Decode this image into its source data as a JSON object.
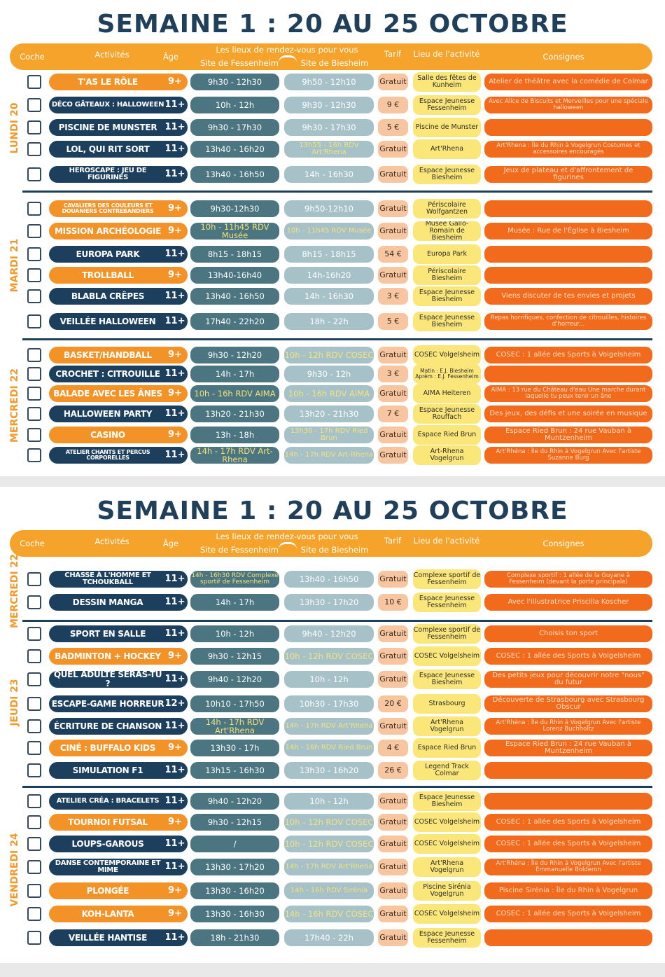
{
  "pages": [
    {
      "title": "SEMAINE 1 : 20 AU 25 OCTOBRE",
      "header": {
        "check": "Coche",
        "activities": "Activités",
        "age": "Âge",
        "meeting": "Les lieux de rendez-vous pour vous",
        "fessenheim": "Site de Fessenheim",
        "biesheim": "Site de Biesheim",
        "price": "Tarif",
        "place": "Lieu de l'activité",
        "notes": "Consignes"
      },
      "days": [
        {
          "label": "LUNDI 20",
          "rows": [
            {
              "activity": "T'AS LE RÔLE",
              "age": "9+",
              "fessenheim": "9h30 - 12h30",
              "biesheim": "9h50 - 12h10",
              "price": "Gratuit",
              "place": "Salle des fêtes de Kunheim",
              "notes": "Atelier de théâtre avec la comédie de Colmar",
              "color": "#f39226"
            },
            {
              "activity": "DÉCO GÂTEAUX : HALLOWEEN",
              "age": "11+",
              "fessenheim": "10h - 12h",
              "biesheim": "9h30 - 12h30",
              "price": "9 €",
              "place": "Espace Jeunesse Fessenheim",
              "notes": "Avec Alice de Biscuits et Merveilles pour une spéciale halloween",
              "color": "#1d3f5e"
            },
            {
              "activity": "PISCINE DE MUNSTER",
              "age": "11+",
              "fessenheim": "9h30 - 17h30",
              "biesheim": "9h30 - 17h30",
              "price": "5 €",
              "place": "Piscine de Munster",
              "color": "#1d3f5e"
            },
            {
              "activity": "LOL, QUI RIT SORT",
              "age": "11+",
              "fessenheim": "13h40 - 16h20",
              "biesheim": "13h55 - 16h RDV Art'Rhena",
              "price": "Gratuit",
              "place": "Art'Rhena",
              "notes": "Art'Rhena : Île du Rhin à Vogelgrun Costumes et accessoires encouragés",
              "color": "#1d3f5e"
            },
            {
              "activity": "HEROSCAPE : JEU DE FIGURINES",
              "age": "11+",
              "fessenheim": "13h40 - 16h50",
              "biesheim": "14h - 16h30",
              "price": "Gratuit",
              "place": "Espace Jeunesse Biesheim",
              "notes": "Jeux de plateau et d'affrontement de figurines",
              "color": "#1d3f5e"
            }
          ]
        },
        {
          "label": "MARDI 21",
          "rows": [
            {
              "activity": "CAVALIERS DES COULEURS ET DOUANIERS CONTREBANDIERS",
              "age": "9+",
              "fessenheim": "9h30-12h30",
              "biesheim": "9h50-12h10",
              "price": "Gratuit",
              "place": "Périscolaire Wolfgantzen",
              "color": "#f39226"
            },
            {
              "activity": "MISSION ARCHÉOLOGIE",
              "age": "9+",
              "fessenheim": "10h - 11h45 RDV Musée",
              "biesheim": "10h - 11h45 RDV Musée",
              "price": "Gratuit",
              "place": "Musée Gallo-Romain de Biesheim",
              "notes": "Musée : Rue de l'Église à Biesheim",
              "color": "#f39226"
            },
            {
              "activity": "EUROPA PARK",
              "age": "11+",
              "fessenheim": "8h15 - 18h15",
              "biesheim": "8h15 - 18h15",
              "price": "54 €",
              "place": "Europa Park",
              "color": "#1d3f5e"
            },
            {
              "activity": "TROLLBALL",
              "age": "9+",
              "fessenheim": "13h40-16h40",
              "biesheim": "14h-16h20",
              "price": "Gratuit",
              "place": "Périscolaire Biesheim",
              "color": "#f39226"
            },
            {
              "activity": "BLABLA CRÊPES",
              "age": "11+",
              "fessenheim": "13h40 - 16h50",
              "biesheim": "14h - 16h30",
              "price": "3 €",
              "place": "Espace Jeunesse Biesheim",
              "notes": "Viens discuter de tes envies et projets",
              "color": "#1d3f5e"
            },
            {
              "activity": "VEILLÉE HALLOWEEN",
              "age": "11+",
              "fessenheim": "17h40 - 22h20",
              "biesheim": "18h - 22h",
              "price": "5 €",
              "place": "Espace Jeunesse Biesheim",
              "notes": "Repas horrifiques, confection de citrouilles, histoires d'horreur...",
              "color": "#1d3f5e"
            }
          ]
        },
        {
          "label": "MERCREDI 22",
          "rows": [
            {
              "activity": "BASKET/HANDBALL",
              "age": "9+",
              "fessenheim": "9h30 - 12h20",
              "biesheim": "10h - 12h RDV COSEC",
              "price": "Gratuit",
              "place": "COSEC Volgelsheim",
              "notes": "COSEC : 1 allée des Sports à Volgelsheim",
              "color": "#f39226"
            },
            {
              "activity": "CROCHET : CITROUILLE",
              "age": "11+",
              "fessenheim": "14h - 17h",
              "biesheim": "9h30 - 12h",
              "price": "3 €",
              "place": "Matin : E.J. Biesheim Aprèm : E.J. Fessenheim",
              "color": "#1d3f5e"
            },
            {
              "activity": "BALADE AVEC LES ÂNES",
              "age": "9+",
              "fessenheim": "10h - 16h RDV AIMA",
              "biesheim": "10h - 16h RDV AIMA",
              "price": "Gratuit",
              "place": "AIMA Heiteren",
              "notes": "AIMA : 13 rue du Château d'eau Une marche durant laquelle tu peux tenir un âne",
              "color": "#f39226"
            },
            {
              "activity": "HALLOWEEN PARTY",
              "age": "11+",
              "fessenheim": "13h20 - 21h30",
              "biesheim": "13h20 - 21h30",
              "price": "7 €",
              "place": "Espace Jeunesse Rouffach",
              "notes": "Des jeux, des défis et une soirée en musique",
              "color": "#1d3f5e"
            },
            {
              "activity": "CASINO",
              "age": "9+",
              "fessenheim": "13h - 18h",
              "biesheim": "13h30 - 17h RDV Ried Brun",
              "price": "Gratuit",
              "place": "Espace Ried Brun",
              "notes": "Espace Ried Brun : 24 rue Vauban à Muntzenheim",
              "color": "#f39226"
            },
            {
              "activity": "ATELIER CHANTS ET PERCUS CORPORELLES",
              "age": "11+",
              "fessenheim": "14h - 17h RDV Art-Rhena",
              "biesheim": "14h - 17h RDV Art-Rhena",
              "price": "Gratuit",
              "place": "Art-Rhena Vogelgrun",
              "notes": "Art'Rhéna : Île du Rhin à Vogelgrun Avec l'artiste Suzanne Burg",
              "color": "#1d3f5e"
            }
          ]
        }
      ]
    },
    {
      "title": "SEMAINE 1 : 20 AU 25 OCTOBRE",
      "header": {
        "check": "Coche",
        "activities": "Activités",
        "age": "Âge",
        "meeting": "Les lieux de rendez-vous pour vous",
        "fessenheim": "Site de Fessenheim",
        "biesheim": "Site de Biesheim",
        "price": "Tarif",
        "place": "Lieu de l'activité",
        "notes": "Consignes"
      },
      "days": [
        {
          "label": "MERCREDI 22",
          "rows": [
            {
              "activity": "CHASSE À L'HOMME ET TCHOUKBALL",
              "age": "11+",
              "fessenheim": "14h - 16h30 RDV Complexe sportif de Fessenheim",
              "biesheim": "13h40 - 16h50",
              "price": "Gratuit",
              "place": "Complexe sportif de Fessenheim",
              "notes": "Complexe sportif : 1 allée de la Guyane à Fessenheim (devant la porte principale)",
              "color": "#1d3f5e"
            },
            {
              "activity": "DESSIN MANGA",
              "age": "11+",
              "fessenheim": "14h - 17h",
              "biesheim": "13h30 - 17h20",
              "price": "10 €",
              "place": "Espace Jeunesse Fessenheim",
              "notes": "Avec l'illustratrice Priscilla Koscher",
              "color": "#1d3f5e"
            }
          ]
        },
        {
          "label": "JEUDI 23",
          "rows": [
            {
              "activity": "SPORT EN SALLE",
              "age": "11+",
              "fessenheim": "10h - 12h",
              "biesheim": "9h40 - 12h20",
              "price": "Gratuit",
              "place": "Complexe sportif de Fessenheim",
              "notes": "Choisis ton sport",
              "color": "#1d3f5e"
            },
            {
              "activity": "BADMINTON + HOCKEY",
              "age": "9+",
              "fessenheim": "9h30 - 12h15",
              "biesheim": "10h - 12h RDV COSEC",
              "price": "Gratuit",
              "place": "COSEC Volgelsheim",
              "notes": "COSEC : 1 allée des Sports à Volgelsheim",
              "color": "#f39226"
            },
            {
              "activity": "QUEL ADULTE SERAS-TU ?",
              "age": "11+",
              "fessenheim": "9h40 - 12h20",
              "biesheim": "10h - 12h",
              "price": "Gratuit",
              "place": "Espace Jeunesse Biesheim",
              "notes": "Des petits jeux pour découvrir notre \"nous\" du futur",
              "color": "#1d3f5e"
            },
            {
              "activity": "ESCAPE-GAME HORREUR",
              "age": "12+",
              "fessenheim": "10h10 - 17h50",
              "biesheim": "10h30 - 17h30",
              "price": "20 €",
              "place": "Strasbourg",
              "notes": "Découverte de Strasbourg avec Strasbourg Obscur",
              "color": "#1d3f5e"
            },
            {
              "activity": "ÉCRITURE DE CHANSON",
              "age": "11+",
              "fessenheim": "14h - 17h RDV Art'Rhena",
              "biesheim": "14h - 17h RDV Art'Rhena",
              "price": "Gratuit",
              "place": "Art'Rhena Vogelgrun",
              "notes": "Art'Rhéna : Île du Rhin à Vogelgrun Avec l'artiste Lorenz Buchholtz",
              "color": "#1d3f5e"
            },
            {
              "activity": "CINÉ : BUFFALO KIDS",
              "age": "9+",
              "fessenheim": "13h30 - 17h",
              "biesheim": "14h - 16h RDV Ried Brun",
              "price": "4 €",
              "place": "Espace Ried Brun",
              "notes": "Espace Ried Brun : 24 rue Vauban à Muntzenheim",
              "color": "#f39226"
            },
            {
              "activity": "SIMULATION F1",
              "age": "11+",
              "fessenheim": "13h15 - 16h30",
              "biesheim": "13h30 - 16h20",
              "price": "26 €",
              "place": "Legend Track Colmar",
              "color": "#1d3f5e"
            }
          ]
        },
        {
          "label": "VENDREDI 24",
          "rows": [
            {
              "activity": "ATELIER CRÉA : BRACELETS",
              "age": "11+",
              "fessenheim": "9h40 - 12h20",
              "biesheim": "10h - 12h",
              "price": "Gratuit",
              "place": "Espace Jeunesse Biesheim",
              "color": "#1d3f5e"
            },
            {
              "activity": "TOURNOI FUTSAL",
              "age": "9+",
              "fessenheim": "9h30 - 12h15",
              "biesheim": "10h - 12h RDV COSEC",
              "price": "Gratuit",
              "place": "COSEC Volgelsheim",
              "notes": "COSEC : 1 allée des Sports à Volgelsheim",
              "color": "#f39226"
            },
            {
              "activity": "LOUPS-GAROUS",
              "age": "11+",
              "fessenheim": "/",
              "biesheim": "10h - 12h RDV COSEC",
              "price": "Gratuit",
              "place": "COSEC Volgelsheim",
              "notes": "COSEC : 1 allée des Sports à Volgelsheim",
              "color": "#1d3f5e"
            },
            {
              "activity": "DANSE CONTEMPORAINE ET MIME",
              "age": "11+",
              "fessenheim": "13h30 - 17h20",
              "biesheim": "14h - 17h RDV Art'Rhena",
              "price": "Gratuit",
              "place": "Art'Rhena Vogelgrun",
              "notes": "Art'Rhéna : Île du Rhin à Vogelgrun Avec l'artiste Emmanuelle Bolderon",
              "color": "#1d3f5e"
            },
            {
              "activity": "PLONGÉE",
              "age": "9+",
              "fessenheim": "13h30 - 16h20",
              "biesheim": "14h - 16h RDV Sirénia",
              "price": "Gratuit",
              "place": "Piscine Sirénia Vogelgrun",
              "notes": "Piscine Sirénia : Île du Rhin à Vogelgrun",
              "color": "#f39226"
            },
            {
              "activity": "KOH-LANTA",
              "age": "9+",
              "fessenheim": "13h30 - 16h30",
              "biesheim": "14h - 16h RDV COSEC",
              "price": "Gratuit",
              "place": "COSEC Volgelsheim",
              "notes": "COSEC : 1 allée des Sports à Volgelsheim",
              "color": "#f39226"
            },
            {
              "activity": "VEILLÉE HANTISE",
              "age": "11+",
              "fessenheim": "18h - 21h30",
              "biesheim": "17h40 - 22h",
              "price": "Gratuit",
              "place": "Espace Jeunesse Fessenheim",
              "color": "#1d3f5e"
            }
          ]
        }
      ]
    }
  ]
}
